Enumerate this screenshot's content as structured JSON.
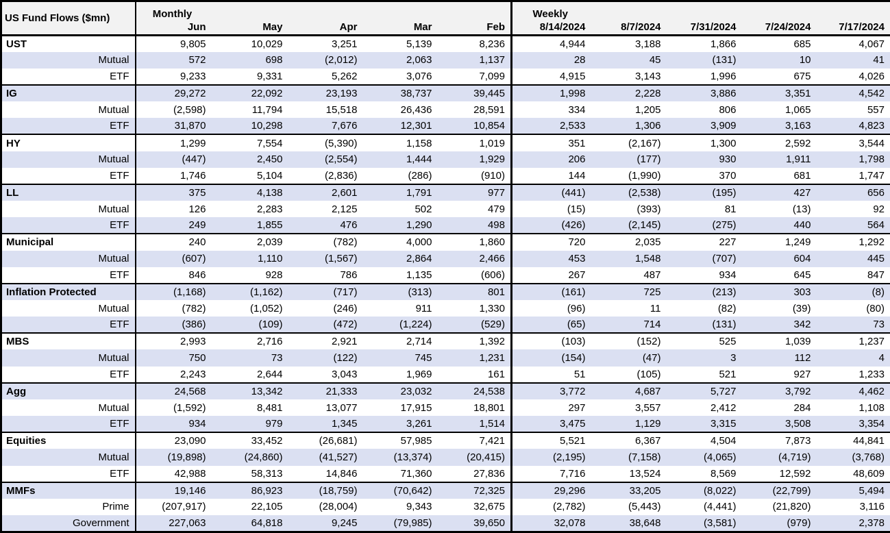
{
  "colors": {
    "band": "#dbe0f2",
    "header_bg": "#f2f2f2",
    "border": "#000000",
    "text": "#000000"
  },
  "chart_data": {
    "type": "table",
    "title": "US Fund Flows ($mn)",
    "column_groups": [
      {
        "label": "Monthly",
        "columns": [
          "Jun",
          "May",
          "Apr",
          "Mar",
          "Feb"
        ]
      },
      {
        "label": "Weekly",
        "columns": [
          "8/14/2024",
          "8/7/2024",
          "7/31/2024",
          "7/24/2024",
          "7/17/2024"
        ]
      }
    ],
    "rows": [
      {
        "label": "UST",
        "style": "group",
        "values": [
          "9,805",
          "10,029",
          "3,251",
          "5,139",
          "8,236",
          "4,944",
          "3,188",
          "1,866",
          "685",
          "4,067"
        ]
      },
      {
        "label": "Mutual",
        "style": "sub",
        "values": [
          "572",
          "698",
          "(2,012)",
          "2,063",
          "1,137",
          "28",
          "45",
          "(131)",
          "10",
          "41"
        ]
      },
      {
        "label": "ETF",
        "style": "sub",
        "values": [
          "9,233",
          "9,331",
          "5,262",
          "3,076",
          "7,099",
          "4,915",
          "3,143",
          "1,996",
          "675",
          "4,026"
        ]
      },
      {
        "label": "IG",
        "style": "group",
        "values": [
          "29,272",
          "22,092",
          "23,193",
          "38,737",
          "39,445",
          "1,998",
          "2,228",
          "3,886",
          "3,351",
          "4,542"
        ]
      },
      {
        "label": "Mutual",
        "style": "sub",
        "values": [
          "(2,598)",
          "11,794",
          "15,518",
          "26,436",
          "28,591",
          "334",
          "1,205",
          "806",
          "1,065",
          "557"
        ]
      },
      {
        "label": "ETF",
        "style": "sub",
        "values": [
          "31,870",
          "10,298",
          "7,676",
          "12,301",
          "10,854",
          "2,533",
          "1,306",
          "3,909",
          "3,163",
          "4,823"
        ]
      },
      {
        "label": "HY",
        "style": "group",
        "values": [
          "1,299",
          "7,554",
          "(5,390)",
          "1,158",
          "1,019",
          "351",
          "(2,167)",
          "1,300",
          "2,592",
          "3,544"
        ]
      },
      {
        "label": "Mutual",
        "style": "sub",
        "values": [
          "(447)",
          "2,450",
          "(2,554)",
          "1,444",
          "1,929",
          "206",
          "(177)",
          "930",
          "1,911",
          "1,798"
        ]
      },
      {
        "label": "ETF",
        "style": "sub",
        "values": [
          "1,746",
          "5,104",
          "(2,836)",
          "(286)",
          "(910)",
          "144",
          "(1,990)",
          "370",
          "681",
          "1,747"
        ]
      },
      {
        "label": "LL",
        "style": "group",
        "values": [
          "375",
          "4,138",
          "2,601",
          "1,791",
          "977",
          "(441)",
          "(2,538)",
          "(195)",
          "427",
          "656"
        ]
      },
      {
        "label": "Mutual",
        "style": "sub",
        "values": [
          "126",
          "2,283",
          "2,125",
          "502",
          "479",
          "(15)",
          "(393)",
          "81",
          "(13)",
          "92"
        ]
      },
      {
        "label": "ETF",
        "style": "sub",
        "values": [
          "249",
          "1,855",
          "476",
          "1,290",
          "498",
          "(426)",
          "(2,145)",
          "(275)",
          "440",
          "564"
        ]
      },
      {
        "label": "Municipal",
        "style": "group",
        "values": [
          "240",
          "2,039",
          "(782)",
          "4,000",
          "1,860",
          "720",
          "2,035",
          "227",
          "1,249",
          "1,292"
        ]
      },
      {
        "label": "Mutual",
        "style": "sub",
        "values": [
          "(607)",
          "1,110",
          "(1,567)",
          "2,864",
          "2,466",
          "453",
          "1,548",
          "(707)",
          "604",
          "445"
        ]
      },
      {
        "label": "ETF",
        "style": "sub",
        "values": [
          "846",
          "928",
          "786",
          "1,135",
          "(606)",
          "267",
          "487",
          "934",
          "645",
          "847"
        ]
      },
      {
        "label": "Inflation Protected",
        "style": "group",
        "values": [
          "(1,168)",
          "(1,162)",
          "(717)",
          "(313)",
          "801",
          "(161)",
          "725",
          "(213)",
          "303",
          "(8)"
        ]
      },
      {
        "label": "Mutual",
        "style": "sub",
        "values": [
          "(782)",
          "(1,052)",
          "(246)",
          "911",
          "1,330",
          "(96)",
          "11",
          "(82)",
          "(39)",
          "(80)"
        ]
      },
      {
        "label": "ETF",
        "style": "sub",
        "values": [
          "(386)",
          "(109)",
          "(472)",
          "(1,224)",
          "(529)",
          "(65)",
          "714",
          "(131)",
          "342",
          "73"
        ]
      },
      {
        "label": "MBS",
        "style": "group",
        "values": [
          "2,993",
          "2,716",
          "2,921",
          "2,714",
          "1,392",
          "(103)",
          "(152)",
          "525",
          "1,039",
          "1,237"
        ]
      },
      {
        "label": "Mutual",
        "style": "sub",
        "values": [
          "750",
          "73",
          "(122)",
          "745",
          "1,231",
          "(154)",
          "(47)",
          "3",
          "112",
          "4"
        ]
      },
      {
        "label": "ETF",
        "style": "sub",
        "values": [
          "2,243",
          "2,644",
          "3,043",
          "1,969",
          "161",
          "51",
          "(105)",
          "521",
          "927",
          "1,233"
        ]
      },
      {
        "label": "Agg",
        "style": "group",
        "values": [
          "24,568",
          "13,342",
          "21,333",
          "23,032",
          "24,538",
          "3,772",
          "4,687",
          "5,727",
          "3,792",
          "4,462"
        ]
      },
      {
        "label": "Mutual",
        "style": "sub",
        "values": [
          "(1,592)",
          "8,481",
          "13,077",
          "17,915",
          "18,801",
          "297",
          "3,557",
          "2,412",
          "284",
          "1,108"
        ]
      },
      {
        "label": "ETF",
        "style": "sub",
        "values": [
          "934",
          "979",
          "1,345",
          "3,261",
          "1,514",
          "3,475",
          "1,129",
          "3,315",
          "3,508",
          "3,354"
        ]
      },
      {
        "label": "Equities",
        "style": "group",
        "values": [
          "23,090",
          "33,452",
          "(26,681)",
          "57,985",
          "7,421",
          "5,521",
          "6,367",
          "4,504",
          "7,873",
          "44,841"
        ]
      },
      {
        "label": "Mutual",
        "style": "sub",
        "values": [
          "(19,898)",
          "(24,860)",
          "(41,527)",
          "(13,374)",
          "(20,415)",
          "(2,195)",
          "(7,158)",
          "(4,065)",
          "(4,719)",
          "(3,768)"
        ]
      },
      {
        "label": "ETF",
        "style": "sub",
        "values": [
          "42,988",
          "58,313",
          "14,846",
          "71,360",
          "27,836",
          "7,716",
          "13,524",
          "8,569",
          "12,592",
          "48,609"
        ]
      },
      {
        "label": "MMFs",
        "style": "group",
        "values": [
          "19,146",
          "86,923",
          "(18,759)",
          "(70,642)",
          "72,325",
          "29,296",
          "33,205",
          "(8,022)",
          "(22,799)",
          "5,494"
        ]
      },
      {
        "label": "Prime",
        "style": "sub",
        "values": [
          "(207,917)",
          "22,105",
          "(28,004)",
          "9,343",
          "32,675",
          "(2,782)",
          "(5,443)",
          "(4,441)",
          "(21,820)",
          "3,116"
        ]
      },
      {
        "label": "Government",
        "style": "sub",
        "values": [
          "227,063",
          "64,818",
          "9,245",
          "(79,985)",
          "39,650",
          "32,078",
          "38,648",
          "(3,581)",
          "(979)",
          "2,378"
        ]
      }
    ]
  }
}
